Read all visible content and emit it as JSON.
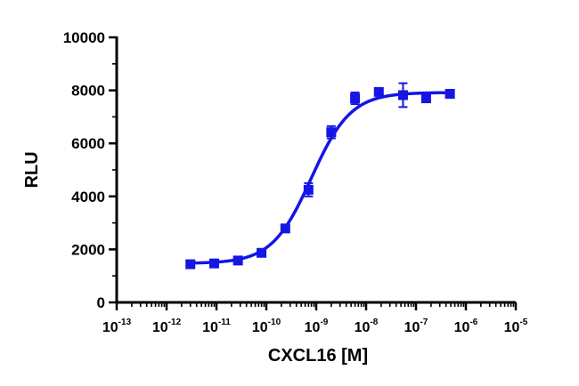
{
  "chart_data": {
    "type": "scatter",
    "xlabel": "CXCL16 [M]",
    "ylabel": "RLU",
    "x_scale": "log",
    "xlim": [
      1e-13,
      1e-05
    ],
    "ylim": [
      0,
      10000
    ],
    "y_ticks": [
      0,
      2000,
      4000,
      6000,
      8000,
      10000
    ],
    "x_tick_exponents": [
      -13,
      -12,
      -11,
      -10,
      -9,
      -8,
      -7,
      -6,
      -5
    ],
    "x_tick_base": "10",
    "grid": false,
    "legend": "none",
    "series_color": "#1515e6",
    "fit": {
      "model": "four-parameter logistic",
      "bottom": 1470,
      "top": 7920,
      "ec50": 8e-10,
      "hill": 1.1
    },
    "points": [
      {
        "x": 3e-12,
        "y": 1440,
        "err": 70
      },
      {
        "x": 9e-12,
        "y": 1470,
        "err": 60
      },
      {
        "x": 2.7e-11,
        "y": 1580,
        "err": 80
      },
      {
        "x": 8e-11,
        "y": 1870,
        "err": 90
      },
      {
        "x": 2.4e-10,
        "y": 2790,
        "err": 130
      },
      {
        "x": 7e-10,
        "y": 4250,
        "err": 250
      },
      {
        "x": 2e-09,
        "y": 6420,
        "err": 230
      },
      {
        "x": 6e-09,
        "y": 7700,
        "err": 220
      },
      {
        "x": 1.8e-08,
        "y": 7940,
        "err": 90
      },
      {
        "x": 5.5e-08,
        "y": 7820,
        "err": 450
      },
      {
        "x": 1.6e-07,
        "y": 7700,
        "err": 100
      },
      {
        "x": 4.8e-07,
        "y": 7870,
        "err": 90
      }
    ]
  }
}
